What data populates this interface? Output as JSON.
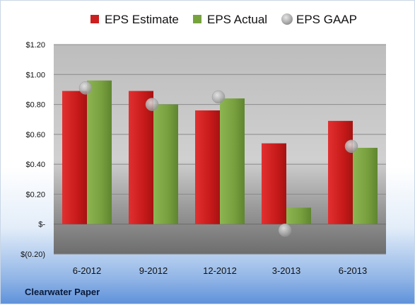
{
  "chart_data": {
    "type": "bar",
    "categories": [
      "6-2012",
      "9-2012",
      "12-2012",
      "3-2013",
      "6-2013"
    ],
    "series": [
      {
        "name": "EPS Estimate",
        "values": [
          0.89,
          0.89,
          0.76,
          0.54,
          0.69
        ],
        "color": "#cc1f1f"
      },
      {
        "name": "EPS Actual",
        "values": [
          0.96,
          0.8,
          0.84,
          0.11,
          0.51
        ],
        "color": "#77a33d"
      },
      {
        "name": "EPS GAAP",
        "values": [
          0.91,
          0.8,
          0.85,
          -0.04,
          0.52
        ],
        "color": "#b3b3b3",
        "marker": "circle"
      }
    ],
    "ylim": [
      -0.2,
      1.2
    ],
    "yticks": [
      -0.2,
      0,
      0.2,
      0.4,
      0.6,
      0.8,
      1.0,
      1.2
    ],
    "ytick_labels": [
      "$(0.20)",
      "$-",
      "$0.20",
      "$0.40",
      "$0.60",
      "$0.80",
      "$1.00",
      "$1.20"
    ],
    "grid": true,
    "legend": "top"
  },
  "footer": {
    "company": "Clearwater Paper"
  }
}
